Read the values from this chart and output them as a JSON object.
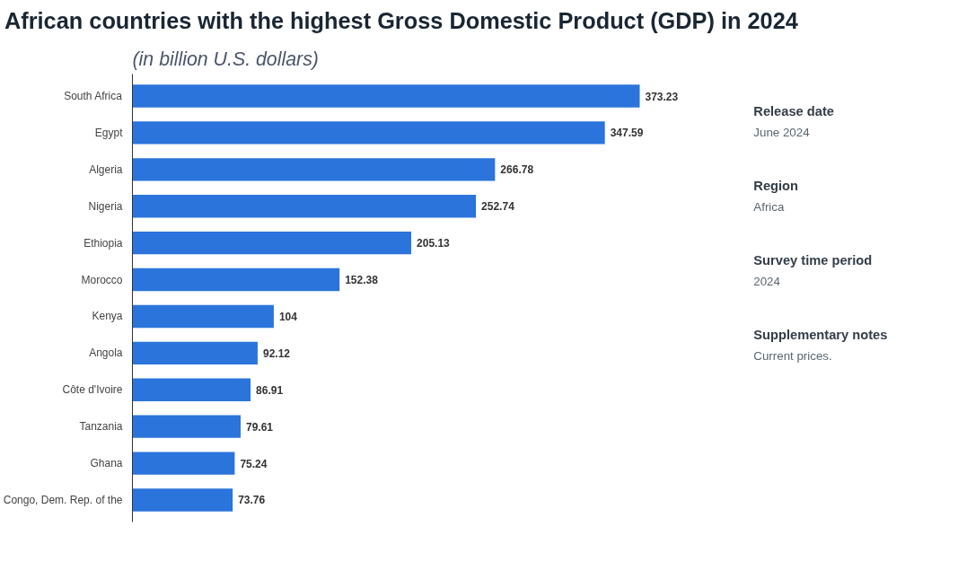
{
  "chart_data": {
    "type": "bar",
    "orientation": "horizontal",
    "title": "African countries with the highest Gross Domestic Product (GDP) in 2024",
    "subtitle": "(in billion U.S. dollars)",
    "categories": [
      "South Africa",
      "Egypt",
      "Algeria",
      "Nigeria",
      "Ethiopia",
      "Morocco",
      "Kenya",
      "Angola",
      "Côte d'Ivoire",
      "Tanzania",
      "Ghana",
      "Congo, Dem. Rep. of the"
    ],
    "values": [
      373.23,
      347.59,
      266.78,
      252.74,
      205.13,
      152.38,
      104,
      92.12,
      86.91,
      79.61,
      75.24,
      73.76
    ],
    "color": "#2b74db",
    "data_labels": true,
    "tick_labels": "y",
    "annotations": [
      "Release date",
      "June 2024",
      "Region",
      "Africa",
      "Survey time period",
      "2024",
      "Supplementary notes",
      "Current prices."
    ]
  }
}
